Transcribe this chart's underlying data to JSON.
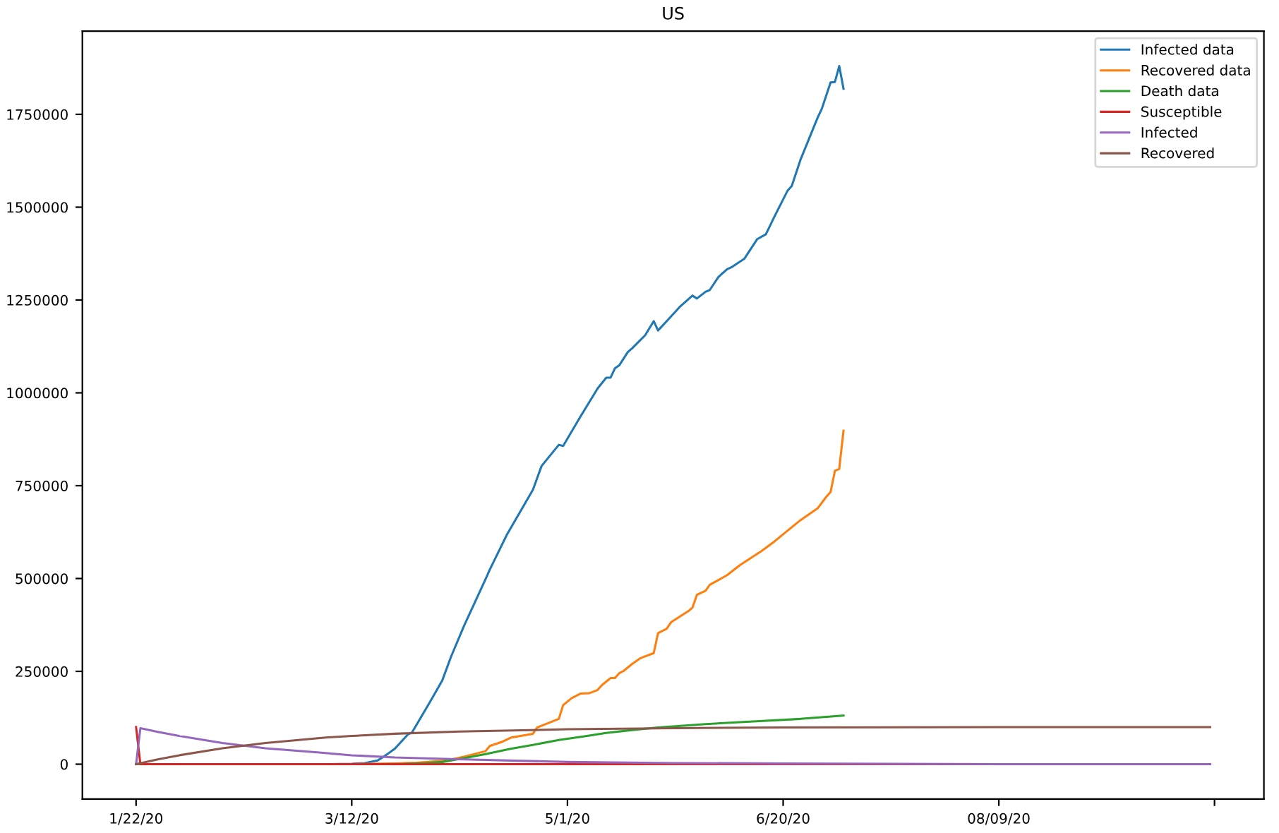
{
  "chart_data": {
    "type": "line",
    "title": "US",
    "xlim": [
      "2020-01-09T13:12",
      "2020-10-09T10:48"
    ],
    "xticks": [
      {
        "value": "2020-01-22",
        "label": "1/22/20"
      },
      {
        "value": "2020-03-12",
        "label": "3/12/20"
      },
      {
        "value": "2020-05-01",
        "label": "5/1/20"
      },
      {
        "value": "2020-06-20",
        "label": "6/20/20"
      },
      {
        "value": "2020-08-09",
        "label": "08/09/20"
      },
      {
        "value": "2020-09-28",
        "label": null
      }
    ],
    "ylim": [
      -94000,
      1974000
    ],
    "yticks": [
      0,
      250000,
      500000,
      750000,
      1000000,
      1250000,
      1500000,
      1750000
    ],
    "grid": false,
    "legend": "top right",
    "marker": "none",
    "line_style": "solid",
    "series": [
      {
        "name": "Infected data",
        "color": "#1f77b4",
        "x": [
          "2020-01-22",
          "2020-03-07",
          "2020-03-12",
          "2020-03-15",
          "2020-03-18",
          "2020-03-20",
          "2020-03-22",
          "2020-03-25",
          "2020-03-26",
          "2020-03-30",
          "2020-04-02",
          "2020-04-04",
          "2020-04-07",
          "2020-04-12",
          "2020-04-13",
          "2020-04-17",
          "2020-04-23",
          "2020-04-25",
          "2020-04-29",
          "2020-04-30",
          "2020-05-04",
          "2020-05-08",
          "2020-05-10",
          "2020-05-11",
          "2020-05-12",
          "2020-05-13",
          "2020-05-15",
          "2020-05-16",
          "2020-05-19",
          "2020-05-21",
          "2020-05-22",
          "2020-05-24",
          "2020-05-27",
          "2020-05-30",
          "2020-05-31",
          "2020-06-02",
          "2020-06-03",
          "2020-06-05",
          "2020-06-07",
          "2020-06-08",
          "2020-06-11",
          "2020-06-14",
          "2020-06-16",
          "2020-06-18",
          "2020-06-21",
          "2020-06-22",
          "2020-06-24",
          "2020-06-28",
          "2020-06-29",
          "2020-07-01",
          "2020-07-02",
          "2020-07-03",
          "2020-07-04"
        ],
        "values": [
          0,
          0,
          1000,
          3000,
          10000,
          25000,
          42000,
          80000,
          86000,
          165000,
          226000,
          289000,
          372000,
          498000,
          524000,
          619000,
          739000,
          803000,
          860000,
          857000,
          936000,
          1012000,
          1041000,
          1041000,
          1066000,
          1074000,
          1110000,
          1120000,
          1155000,
          1193000,
          1168000,
          1193000,
          1231000,
          1262000,
          1254000,
          1272000,
          1277000,
          1312000,
          1333000,
          1338000,
          1361000,
          1414000,
          1427000,
          1475000,
          1544000,
          1557000,
          1627000,
          1741000,
          1766000,
          1836000,
          1837000,
          1880000,
          1819000
        ]
      },
      {
        "name": "Recovered data",
        "color": "#ff7f0e",
        "x": [
          "2020-01-22",
          "2020-03-12",
          "2020-03-22",
          "2020-03-27",
          "2020-04-03",
          "2020-04-07",
          "2020-04-12",
          "2020-04-13",
          "2020-04-16",
          "2020-04-18",
          "2020-04-23",
          "2020-04-24",
          "2020-04-29",
          "2020-04-30",
          "2020-05-02",
          "2020-05-04",
          "2020-05-06",
          "2020-05-08",
          "2020-05-09",
          "2020-05-11",
          "2020-05-12",
          "2020-05-13",
          "2020-05-14",
          "2020-05-16",
          "2020-05-18",
          "2020-05-21",
          "2020-05-22",
          "2020-05-24",
          "2020-05-25",
          "2020-05-29",
          "2020-05-30",
          "2020-05-31",
          "2020-06-02",
          "2020-06-03",
          "2020-06-07",
          "2020-06-10",
          "2020-06-13",
          "2020-06-15",
          "2020-06-18",
          "2020-06-20",
          "2020-06-22",
          "2020-06-24",
          "2020-06-28",
          "2020-06-30",
          "2020-07-01",
          "2020-07-02",
          "2020-07-03",
          "2020-07-04"
        ],
        "values": [
          0,
          0,
          2000,
          4000,
          10000,
          20000,
          35000,
          49000,
          61000,
          72000,
          82000,
          99000,
          122000,
          159000,
          178000,
          190000,
          191000,
          200000,
          213000,
          232000,
          232000,
          245000,
          251000,
          270000,
          286000,
          299000,
          353000,
          365000,
          382000,
          412000,
          422000,
          456000,
          467000,
          483000,
          509000,
          536000,
          559000,
          574000,
          600000,
          619000,
          638000,
          657000,
          689000,
          720000,
          733000,
          790000,
          795000,
          898000
        ]
      },
      {
        "name": "Death data",
        "color": "#2ca02c",
        "x": [
          "2020-01-22",
          "2020-03-17",
          "2020-03-24",
          "2020-03-29",
          "2020-04-02",
          "2020-04-07",
          "2020-04-12",
          "2020-04-18",
          "2020-04-23",
          "2020-04-29",
          "2020-05-05",
          "2020-05-10",
          "2020-05-16",
          "2020-05-22",
          "2020-06-02",
          "2020-06-13",
          "2020-06-24",
          "2020-07-04"
        ],
        "values": [
          0,
          0,
          1000,
          3000,
          6000,
          16000,
          27000,
          42000,
          52000,
          65000,
          75000,
          84000,
          92000,
          99000,
          108000,
          115000,
          122000,
          131000
        ]
      },
      {
        "name": "Susceptible",
        "color": "#d62728",
        "x": [
          "2020-01-22",
          "2020-01-23",
          "2020-03-12",
          "2020-05-01",
          "2020-06-20",
          "2020-08-09",
          "2020-09-27"
        ],
        "values": [
          100000,
          0,
          0,
          0,
          0,
          0,
          0
        ]
      },
      {
        "name": "Infected",
        "color": "#9467bd",
        "x": [
          "2020-01-22",
          "2020-01-23",
          "2020-01-27",
          "2020-02-01",
          "2020-02-11",
          "2020-02-21",
          "2020-03-05",
          "2020-03-12",
          "2020-03-22",
          "2020-04-07",
          "2020-05-01",
          "2020-05-26",
          "2020-06-20",
          "2020-08-09",
          "2020-09-27"
        ],
        "values": [
          0,
          97000,
          87000,
          76000,
          57000,
          43000,
          31000,
          24000,
          18000,
          13000,
          6000,
          3000,
          2000,
          0,
          0
        ]
      },
      {
        "name": "Recovered",
        "color": "#8c564b",
        "x": [
          "2020-01-22",
          "2020-01-27",
          "2020-02-01",
          "2020-02-11",
          "2020-02-16",
          "2020-02-21",
          "2020-03-06",
          "2020-03-12",
          "2020-03-22",
          "2020-04-06",
          "2020-05-01",
          "2020-05-26",
          "2020-06-20",
          "2020-08-09",
          "2020-09-27"
        ],
        "values": [
          0,
          13000,
          24000,
          43000,
          50000,
          57000,
          72000,
          76000,
          82000,
          88000,
          94000,
          97000,
          99000,
          100000,
          100000
        ]
      }
    ]
  }
}
